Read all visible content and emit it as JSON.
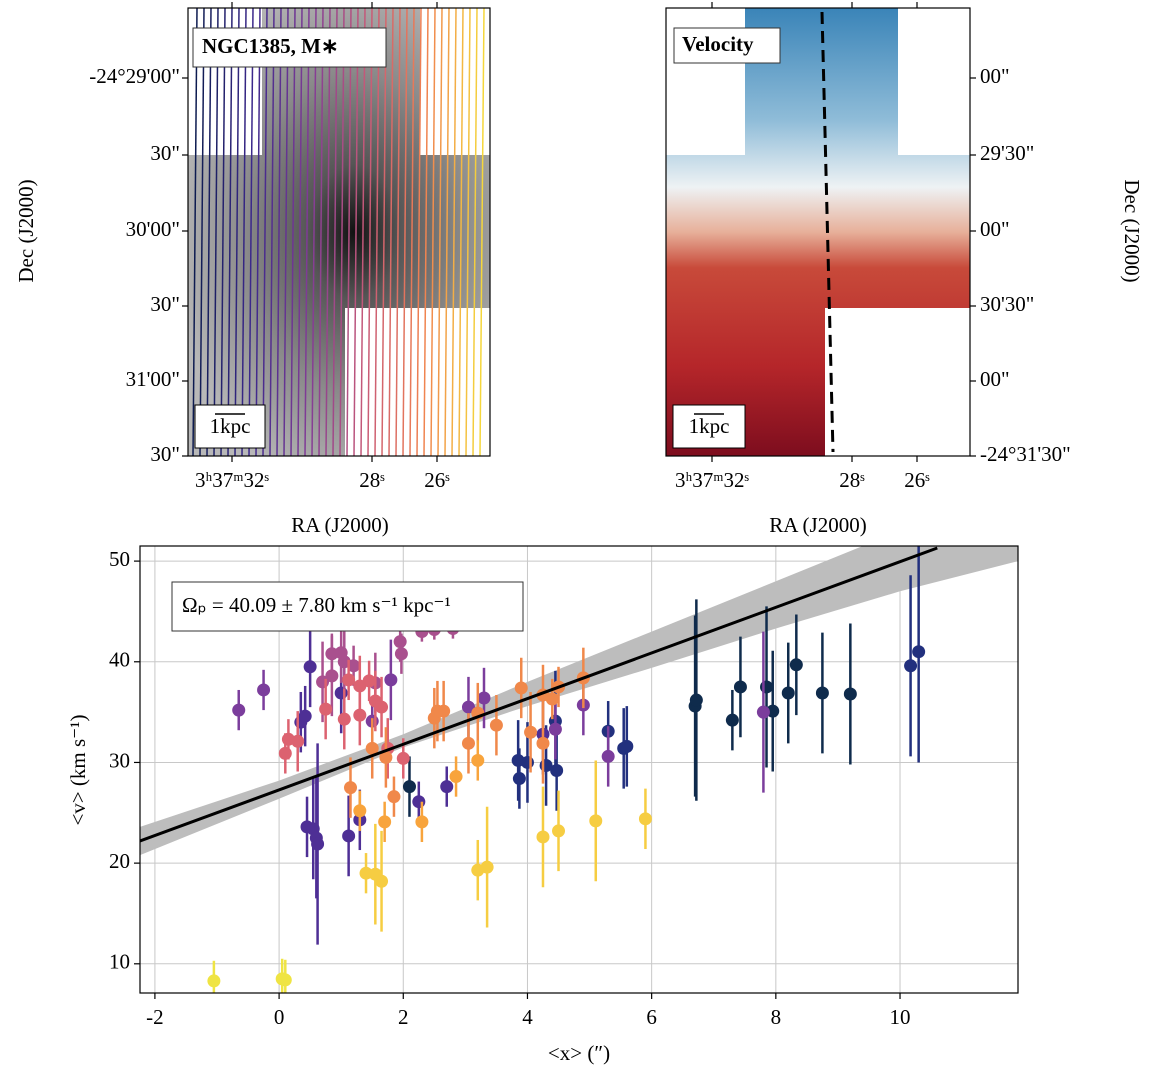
{
  "chart_data": [
    {
      "type": "image",
      "title": "NGC1385, M∗",
      "scale_bar": "1kpc",
      "y_label": "Dec (J2000)",
      "x_label": "RA (J2000)",
      "y_tick_labels": [
        "-24°29'00\"",
        "30\"",
        "30'00\"",
        "30\"",
        "31'00\"",
        "30\""
      ],
      "x_tick_labels": [
        "3ʰ37ᵐ32ˢ",
        "28ˢ",
        "26ˢ"
      ]
    },
    {
      "type": "image",
      "title": "Velocity",
      "scale_bar": "1kpc",
      "y_label": "Dec (J2000)",
      "x_label": "RA (J2000)",
      "y_tick_labels": [
        "00\"",
        "29'30\"",
        "00\"",
        "30'30\"",
        "00\"",
        "-24°31'30\""
      ],
      "x_tick_labels": [
        "3ʰ37ᵐ32ˢ",
        "28ˢ",
        "26ˢ"
      ]
    },
    {
      "type": "scatter",
      "annotation": "Ωₚ = 40.09 ± 7.80 km s⁻¹ kpc⁻¹",
      "x_label": "<x> (″)",
      "y_label": "<v> (km s⁻¹)",
      "xlim": [
        -2.24,
        11.9
      ],
      "ylim": [
        7.1,
        51.5
      ],
      "xticks": [
        -2,
        0,
        2,
        4,
        6,
        8,
        10
      ],
      "yticks": [
        10,
        20,
        30,
        40,
        50
      ],
      "grid": true,
      "fit": {
        "color": "#000000",
        "x": [
          -2.24,
          10.6
        ],
        "values": [
          22.2,
          51.3
        ]
      },
      "band": {
        "color": "#bdbdbd",
        "x": [
          -2.24,
          0,
          2,
          4,
          6,
          8,
          10,
          11.9
        ],
        "lower": [
          20.8,
          26.4,
          31.5,
          35.6,
          39.4,
          43.3,
          47.0,
          50.0
        ],
        "upper": [
          23.6,
          28.2,
          32.8,
          38.0,
          43.0,
          48.0,
          53.0,
          57.5
        ]
      },
      "series": [
        {
          "color": "#0f2b4c",
          "x": [
            6.7,
            6.72,
            7.3,
            7.43,
            7.95,
            7.85,
            8.2,
            8.33,
            8.75,
            9.2,
            2.1
          ],
          "values": [
            35.6,
            36.2,
            34.2,
            37.5,
            35.1,
            37.5,
            36.9,
            39.7,
            36.9,
            36.8,
            27.6
          ],
          "errors": [
            9,
            10,
            3,
            5,
            6,
            8,
            5,
            5,
            6,
            7,
            3
          ]
        },
        {
          "color": "#22307e",
          "x": [
            3.85,
            3.87,
            4.0,
            4.3,
            4.45,
            4.47,
            5.3,
            5.55,
            5.6,
            10.17,
            10.3
          ],
          "values": [
            30.2,
            28.4,
            30.0,
            29.7,
            34.1,
            29.2,
            33.1,
            31.4,
            31.6,
            39.6,
            41.0
          ],
          "errors": [
            4,
            3,
            4,
            4,
            5,
            4,
            3,
            4,
            4,
            9,
            11
          ]
        },
        {
          "color": "#4e2f95",
          "x": [
            0.45,
            0.55,
            0.6,
            0.62,
            0.35,
            0.42,
            1.12,
            1.3,
            2.25,
            2.7,
            4.25,
            0.5,
            1.0
          ],
          "values": [
            23.6,
            23.4,
            22.5,
            21.9,
            34.0,
            34.6,
            22.7,
            24.3,
            26.1,
            27.6,
            32.8,
            39.5,
            36.9
          ],
          "errors": [
            3,
            5,
            6,
            10,
            3,
            3,
            4,
            3,
            2,
            2,
            4,
            4,
            4
          ]
        },
        {
          "color": "#7b3d9c",
          "x": [
            -0.65,
            -0.25,
            3.05,
            3.3,
            4.45,
            4.9,
            5.3,
            7.8,
            1.5,
            1.8
          ],
          "values": [
            35.2,
            37.2,
            35.5,
            36.4,
            33.3,
            35.7,
            30.6,
            35.0,
            34.1,
            38.2
          ],
          "errors": [
            2,
            2,
            3,
            3,
            3,
            3,
            3,
            8,
            2,
            4
          ]
        },
        {
          "color": "#a9508e",
          "x": [
            0.85,
            1.0,
            1.05,
            1.2,
            0.7,
            0.85,
            1.95,
            1.97,
            2.3,
            2.5,
            2.8,
            1.55
          ],
          "values": [
            40.8,
            40.9,
            40.0,
            39.6,
            38.0,
            38.6,
            42.0,
            40.8,
            43.0,
            43.2,
            43.3,
            37.9
          ],
          "errors": [
            2,
            3,
            3,
            2,
            4,
            4,
            2,
            2,
            1,
            1,
            1,
            3
          ]
        },
        {
          "color": "#dc6270",
          "x": [
            0.1,
            0.15,
            0.3,
            0.75,
            1.12,
            1.3,
            1.45,
            1.3,
            1.55,
            1.65,
            1.75,
            2.0,
            1.05
          ],
          "values": [
            30.9,
            32.3,
            32.1,
            35.3,
            38.2,
            37.6,
            38.1,
            34.7,
            36.1,
            35.5,
            31.4,
            30.4,
            34.3
          ],
          "errors": [
            2,
            2,
            3,
            3,
            2,
            3,
            2,
            3,
            3,
            3,
            3,
            2,
            3
          ]
        },
        {
          "color": "#f0884a",
          "x": [
            1.5,
            1.72,
            2.5,
            2.55,
            2.65,
            3.2,
            3.05,
            3.5,
            3.9,
            4.25,
            4.4,
            4.5,
            4.9,
            4.05,
            4.25,
            1.85,
            1.15
          ],
          "values": [
            31.4,
            30.5,
            34.4,
            35.1,
            35.1,
            34.9,
            31.9,
            33.7,
            37.4,
            36.7,
            36.3,
            37.5,
            38.4,
            33.0,
            31.9,
            26.6,
            27.5
          ],
          "errors": [
            3,
            3,
            3,
            3,
            3,
            3,
            3,
            3,
            3,
            3,
            2,
            2,
            3,
            4,
            4,
            2,
            3
          ]
        },
        {
          "color": "#f8a43c",
          "x": [
            1.3,
            1.7,
            2.3,
            2.85,
            3.2
          ],
          "values": [
            25.2,
            24.1,
            24.1,
            28.6,
            30.2
          ],
          "errors": [
            2,
            2,
            2,
            2,
            2
          ]
        },
        {
          "color": "#f6cd42",
          "x": [
            1.4,
            1.55,
            1.65,
            3.2,
            3.35,
            4.25,
            4.5,
            5.1,
            5.9
          ],
          "values": [
            19.0,
            18.9,
            18.2,
            19.3,
            19.6,
            22.6,
            23.2,
            24.2,
            24.4
          ],
          "errors": [
            2,
            5,
            5,
            3,
            6,
            5,
            4,
            6,
            3
          ]
        },
        {
          "color": "#efe443",
          "x": [
            -1.05,
            0.05,
            0.1
          ],
          "values": [
            8.3,
            8.5,
            8.4
          ],
          "errors": [
            2,
            2,
            2
          ]
        }
      ]
    }
  ]
}
